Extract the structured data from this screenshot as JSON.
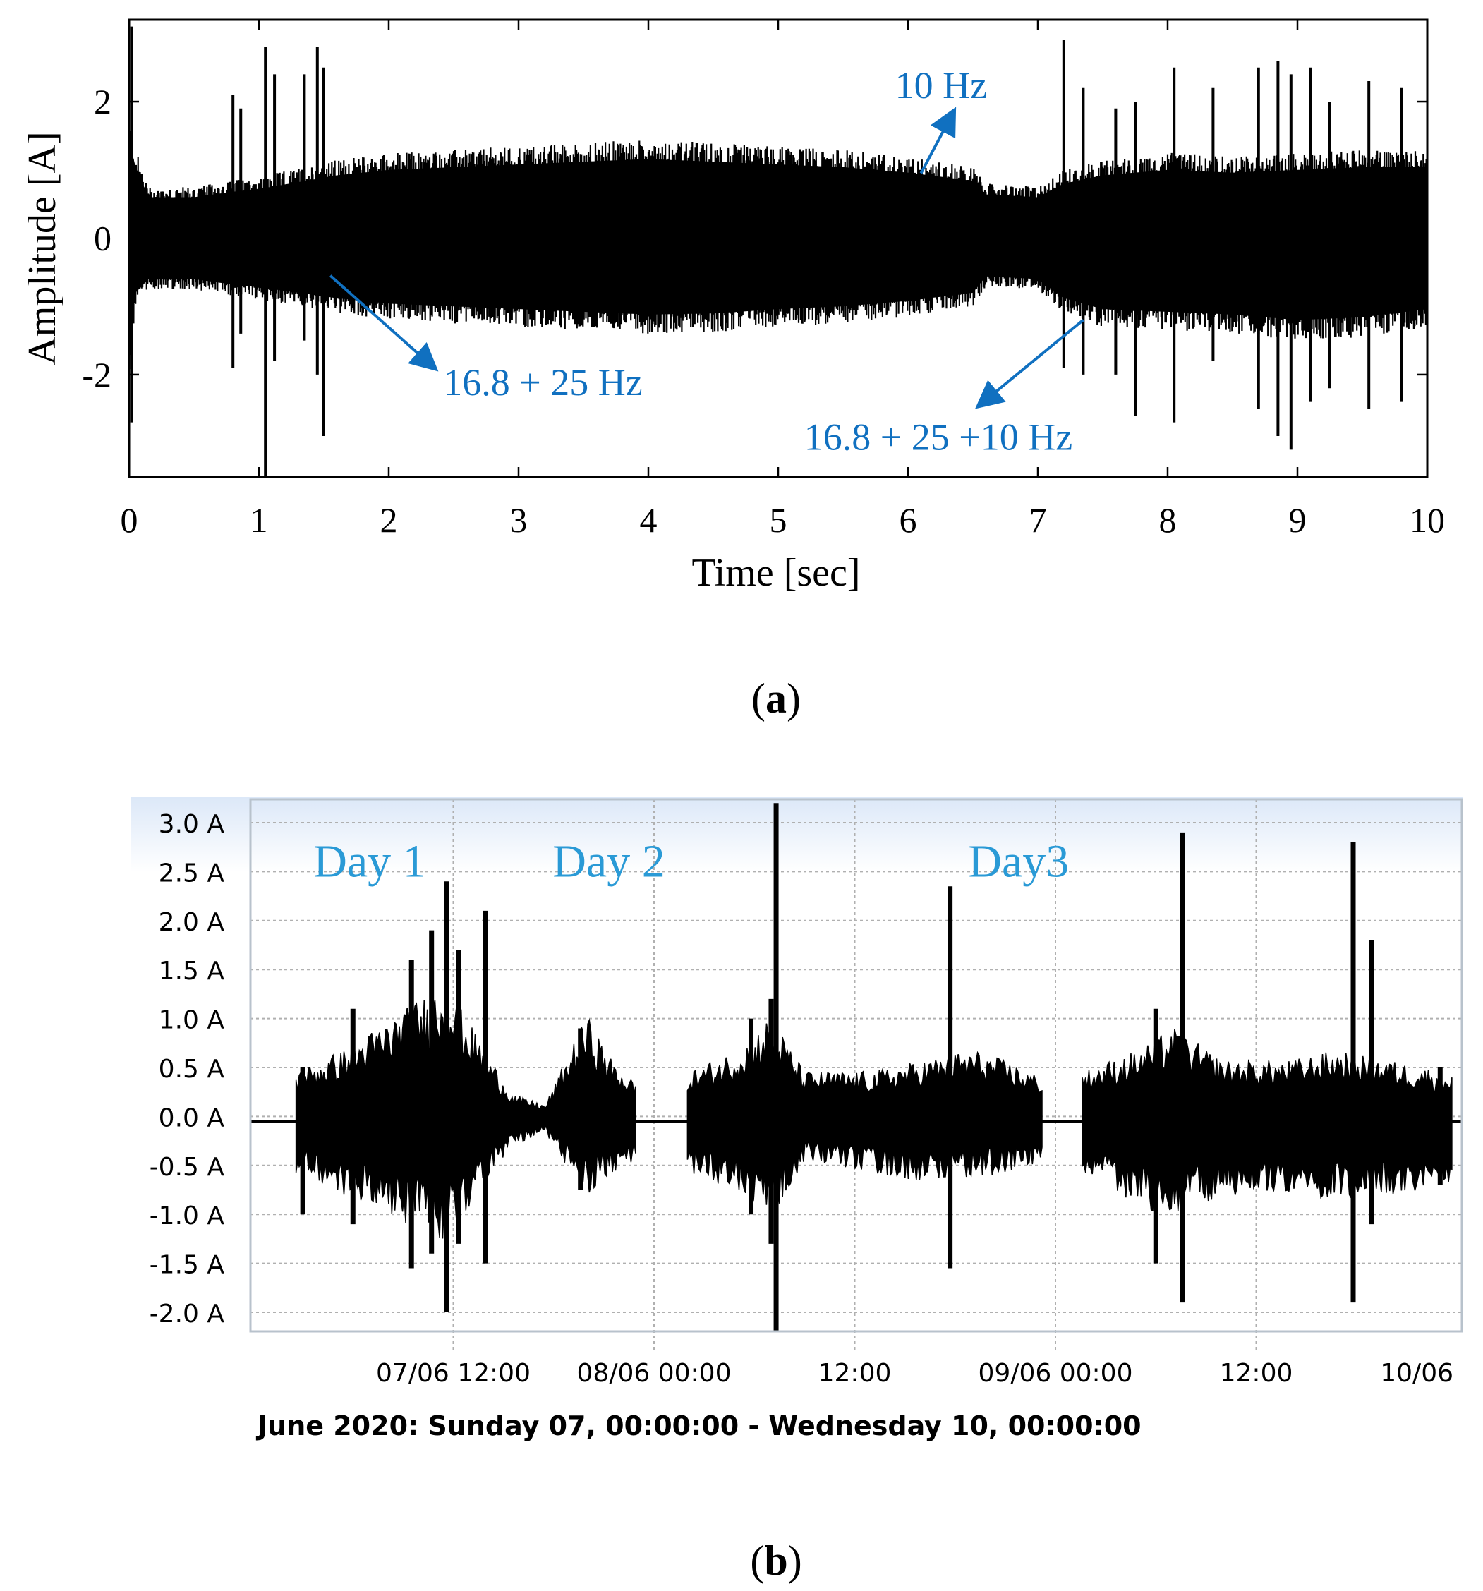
{
  "chart_data": [
    {
      "panel_label": "(a)",
      "panel_letter": "a",
      "type": "line",
      "title": "",
      "xlabel": "Time [sec]",
      "ylabel": "Amplitude [A]",
      "xlim": [
        0,
        10
      ],
      "ylim": [
        -3.5,
        3.2
      ],
      "xticks": [
        "0",
        "1",
        "2",
        "3",
        "4",
        "5",
        "6",
        "7",
        "8",
        "9",
        "10"
      ],
      "yticks": [
        "2",
        "0",
        "-2"
      ],
      "ytick_values": [
        2,
        0,
        -2
      ],
      "grid": false,
      "series_color": "#000000",
      "annotation_color": "#1070c0",
      "envelope": {
        "t": [
          0.0,
          0.05,
          0.15,
          0.5,
          0.8,
          1.0,
          1.6,
          2.0,
          2.5,
          3.0,
          3.5,
          4.0,
          4.5,
          5.0,
          5.5,
          6.0,
          6.5,
          6.6,
          7.0,
          7.2,
          7.5,
          8.0,
          8.5,
          9.0,
          9.5,
          10.0
        ],
        "upper": [
          1.8,
          1.3,
          0.75,
          0.75,
          0.85,
          0.9,
          1.15,
          1.25,
          1.3,
          1.35,
          1.4,
          1.45,
          1.4,
          1.35,
          1.3,
          1.2,
          1.05,
          0.8,
          0.75,
          1.0,
          1.15,
          1.25,
          1.2,
          1.25,
          1.3,
          1.3
        ],
        "lower": [
          -2.0,
          -1.0,
          -0.75,
          -0.75,
          -0.85,
          -0.9,
          -1.1,
          -1.2,
          -1.25,
          -1.3,
          -1.35,
          -1.4,
          -1.38,
          -1.3,
          -1.25,
          -1.15,
          -1.0,
          -0.7,
          -0.75,
          -1.1,
          -1.3,
          -1.35,
          -1.4,
          -1.5,
          -1.45,
          -1.3
        ]
      },
      "spikes": [
        {
          "t": 0.02,
          "hi": 3.1,
          "lo": -2.7
        },
        {
          "t": 0.8,
          "hi": 2.1,
          "lo": -1.9
        },
        {
          "t": 0.86,
          "hi": 1.9,
          "lo": -1.4
        },
        {
          "t": 1.05,
          "hi": 2.8,
          "lo": -3.5
        },
        {
          "t": 1.12,
          "hi": 2.4,
          "lo": -1.8
        },
        {
          "t": 1.35,
          "hi": 2.4,
          "lo": -1.5
        },
        {
          "t": 1.45,
          "hi": 2.8,
          "lo": -2.0
        },
        {
          "t": 1.5,
          "hi": 2.5,
          "lo": -2.9
        },
        {
          "t": 7.2,
          "hi": 2.9,
          "lo": -1.9
        },
        {
          "t": 7.35,
          "hi": 2.2,
          "lo": -2.0
        },
        {
          "t": 7.6,
          "hi": 1.9,
          "lo": -2.0
        },
        {
          "t": 7.75,
          "hi": 2.0,
          "lo": -2.6
        },
        {
          "t": 8.05,
          "hi": 2.5,
          "lo": -2.7
        },
        {
          "t": 8.35,
          "hi": 2.2,
          "lo": -1.8
        },
        {
          "t": 8.7,
          "hi": 2.5,
          "lo": -2.5
        },
        {
          "t": 8.85,
          "hi": 2.6,
          "lo": -2.9
        },
        {
          "t": 8.95,
          "hi": 2.4,
          "lo": -3.1
        },
        {
          "t": 9.1,
          "hi": 2.5,
          "lo": -2.4
        },
        {
          "t": 9.25,
          "hi": 2.0,
          "lo": -2.2
        },
        {
          "t": 9.55,
          "hi": 2.3,
          "lo": -2.5
        },
        {
          "t": 9.8,
          "hi": 2.2,
          "lo": -2.4
        }
      ],
      "annotations": [
        {
          "text": "10 Hz",
          "text_t": 5.9,
          "text_y": 2.05,
          "from_t": 6.1,
          "from_y": 0.95,
          "to_t": 6.35,
          "to_y": 1.85
        },
        {
          "text": "16.8 + 25 Hz",
          "text_t": 2.42,
          "text_y": -2.3,
          "from_t": 1.55,
          "from_y": -0.55,
          "to_t": 2.35,
          "to_y": -1.9
        },
        {
          "text": "16.8 + 25 +10 Hz",
          "text_t": 5.2,
          "text_y": -3.1,
          "from_t": 7.35,
          "from_y": -1.2,
          "to_t": 6.55,
          "to_y": -2.45
        }
      ]
    },
    {
      "panel_label": "(b)",
      "panel_letter": "b",
      "type": "area",
      "title": "",
      "xlabel": "June 2020: Sunday 07, 00:00:00 - Wednesday 10, 00:00:00",
      "ylabel": "",
      "x_unit": "hours from 07/06 00:00",
      "xlim": [
        0,
        72
      ],
      "ylim": [
        -2.2,
        3.2
      ],
      "xticks": [
        {
          "label": "07/06 12:00",
          "h": 12
        },
        {
          "label": "08/06 00:00",
          "h": 24
        },
        {
          "label": "12:00",
          "h": 36
        },
        {
          "label": "09/06 00:00",
          "h": 48
        },
        {
          "label": "12:00",
          "h": 60
        },
        {
          "label": "10/06",
          "h": 72
        }
      ],
      "vgrid_hours": [
        12,
        24,
        36,
        48,
        60
      ],
      "yticks": [
        "3.0 A",
        "2.5 A",
        "2.0 A",
        "1.5 A",
        "1.0 A",
        "0.5 A",
        "0.0 A",
        "-0.5 A",
        "-1.0 A",
        "-1.5 A",
        "-2.0 A"
      ],
      "ytick_values": [
        3.0,
        2.5,
        2.0,
        1.5,
        1.0,
        0.5,
        0.0,
        -0.5,
        -1.0,
        -1.5,
        -2.0
      ],
      "grid": true,
      "baseline_value": -0.05,
      "series_color": "#000000",
      "label_color": "#2a9ad6",
      "day_labels": [
        {
          "text": "Day 1",
          "h": 7.0,
          "y": 2.45
        },
        {
          "text": "Day 2",
          "h": 21.3,
          "y": 2.45
        },
        {
          "text": "Day3",
          "h": 45.8,
          "y": 2.45
        }
      ],
      "active_periods": [
        {
          "start": 2.6,
          "end": 22.9,
          "upper": 0.45,
          "lower": -0.5
        },
        {
          "start": 26.0,
          "end": 47.2,
          "upper": 0.45,
          "lower": -0.55
        },
        {
          "start": 49.6,
          "end": 71.7,
          "upper": 0.45,
          "lower": -0.55
        }
      ],
      "envelope_points": [
        {
          "h": 2.6,
          "hi": 0.4,
          "lo": -0.5
        },
        {
          "h": 5.5,
          "hi": 0.6,
          "lo": -0.7
        },
        {
          "h": 7.5,
          "hi": 0.8,
          "lo": -0.8
        },
        {
          "h": 9.5,
          "hi": 1.0,
          "lo": -1.0
        },
        {
          "h": 11.5,
          "hi": 1.2,
          "lo": -1.1
        },
        {
          "h": 13.5,
          "hi": 0.7,
          "lo": -0.7
        },
        {
          "h": 15.5,
          "hi": 0.2,
          "lo": -0.25
        },
        {
          "h": 17.5,
          "hi": 0.1,
          "lo": -0.15
        },
        {
          "h": 19.0,
          "hi": 0.6,
          "lo": -0.5
        },
        {
          "h": 20.0,
          "hi": 0.9,
          "lo": -0.7
        },
        {
          "h": 21.5,
          "hi": 0.5,
          "lo": -0.5
        },
        {
          "h": 22.9,
          "hi": 0.3,
          "lo": -0.4
        },
        {
          "h": 26.0,
          "hi": 0.4,
          "lo": -0.5
        },
        {
          "h": 29.0,
          "hi": 0.6,
          "lo": -0.7
        },
        {
          "h": 31.0,
          "hi": 0.9,
          "lo": -0.9
        },
        {
          "h": 33.0,
          "hi": 0.4,
          "lo": -0.4
        },
        {
          "h": 37.0,
          "hi": 0.4,
          "lo": -0.5
        },
        {
          "h": 40.0,
          "hi": 0.5,
          "lo": -0.6
        },
        {
          "h": 43.0,
          "hi": 0.6,
          "lo": -0.55
        },
        {
          "h": 45.0,
          "hi": 0.5,
          "lo": -0.5
        },
        {
          "h": 47.2,
          "hi": 0.35,
          "lo": -0.4
        },
        {
          "h": 49.6,
          "hi": 0.4,
          "lo": -0.5
        },
        {
          "h": 53.0,
          "hi": 0.6,
          "lo": -0.8
        },
        {
          "h": 55.0,
          "hi": 0.8,
          "lo": -0.9
        },
        {
          "h": 58.0,
          "hi": 0.5,
          "lo": -0.7
        },
        {
          "h": 62.0,
          "hi": 0.5,
          "lo": -0.7
        },
        {
          "h": 65.0,
          "hi": 0.6,
          "lo": -0.75
        },
        {
          "h": 68.0,
          "hi": 0.5,
          "lo": -0.7
        },
        {
          "h": 71.7,
          "hi": 0.4,
          "lo": -0.6
        }
      ],
      "spikes": [
        {
          "h": 3.0,
          "hi": 0.5,
          "lo": -1.0
        },
        {
          "h": 6.0,
          "hi": 1.1,
          "lo": -1.1
        },
        {
          "h": 9.5,
          "hi": 1.6,
          "lo": -1.55
        },
        {
          "h": 10.7,
          "hi": 1.9,
          "lo": -1.4
        },
        {
          "h": 11.6,
          "hi": 2.4,
          "lo": -2.0
        },
        {
          "h": 12.3,
          "hi": 1.7,
          "lo": -1.3
        },
        {
          "h": 13.9,
          "hi": 2.1,
          "lo": -1.5
        },
        {
          "h": 19.6,
          "hi": 0.9,
          "lo": -0.75
        },
        {
          "h": 29.8,
          "hi": 1.0,
          "lo": -1.0
        },
        {
          "h": 31.0,
          "hi": 1.2,
          "lo": -1.3
        },
        {
          "h": 31.3,
          "hi": 3.2,
          "lo": -2.2
        },
        {
          "h": 41.7,
          "hi": 2.35,
          "lo": -1.55
        },
        {
          "h": 54.0,
          "hi": 1.1,
          "lo": -1.5
        },
        {
          "h": 55.6,
          "hi": 2.9,
          "lo": -1.9
        },
        {
          "h": 65.8,
          "hi": 2.8,
          "lo": -1.9
        },
        {
          "h": 66.9,
          "hi": 1.8,
          "lo": -1.1
        },
        {
          "h": 71.0,
          "hi": 0.5,
          "lo": -0.7
        }
      ]
    }
  ]
}
